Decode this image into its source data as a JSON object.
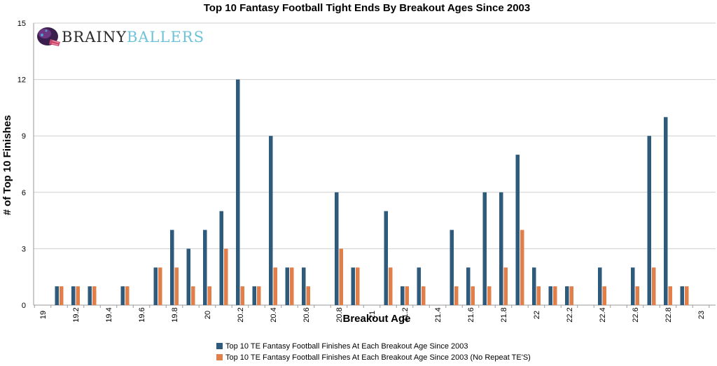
{
  "chart_data": {
    "type": "bar",
    "title": "Top 10 Fantasy Football Tight Ends By Breakout Ages Since 2003",
    "xlabel": "Breakout Age",
    "ylabel": "# of Top 10 Finishes",
    "ylim": [
      0,
      15
    ],
    "yticks": [
      "0",
      "3",
      "6",
      "9",
      "12",
      "15"
    ],
    "grid": true,
    "legend_position": "bottom",
    "categories": [
      "19",
      "19.1",
      "19.2",
      "19.3",
      "19.4",
      "19.5",
      "19.6",
      "19.7",
      "19.8",
      "19.9",
      "20",
      "20.1",
      "20.2",
      "20.3",
      "20.4",
      "20.5",
      "20.6",
      "20.7",
      "20.8",
      "20.9",
      "21",
      "21.1",
      "21.2",
      "21.3",
      "21.4",
      "21.5",
      "21.6",
      "21.7",
      "21.8",
      "21.9",
      "22",
      "22.1",
      "22.2",
      "22.3",
      "22.4",
      "22.5",
      "22.6",
      "22.7",
      "22.8",
      "22.9",
      "23"
    ],
    "tick_labels": [
      "19",
      "",
      "19.2",
      "",
      "19.4",
      "",
      "19.6",
      "",
      "19.8",
      "",
      "20",
      "",
      "20.2",
      "",
      "20.4",
      "",
      "20.6",
      "",
      "20.8",
      "",
      "21",
      "",
      "21.2",
      "",
      "21.4",
      "",
      "21.6",
      "",
      "21.8",
      "",
      "22",
      "",
      "22.2",
      "",
      "22.4",
      "",
      "22.6",
      "",
      "22.8",
      "",
      "23"
    ],
    "series": [
      {
        "name": "Top 10 TE Fantasy Football Finishes At Each Breakout Age Since 2003",
        "color": "#2e5a7c",
        "values": [
          0,
          1,
          1,
          1,
          0,
          1,
          0,
          2,
          4,
          3,
          4,
          5,
          12,
          1,
          9,
          2,
          2,
          0,
          6,
          2,
          0,
          5,
          1,
          2,
          0,
          4,
          2,
          6,
          6,
          8,
          2,
          1,
          1,
          0,
          2,
          0,
          2,
          9,
          10,
          1,
          0
        ]
      },
      {
        "name": "Top 10 TE Fantasy Football Finishes At Each Breakout Age Since 2003 (No Repeat TE'S)",
        "color": "#e07f4a",
        "values": [
          0,
          1,
          1,
          1,
          0,
          1,
          0,
          2,
          2,
          1,
          1,
          3,
          1,
          1,
          2,
          2,
          1,
          0,
          3,
          2,
          0,
          2,
          1,
          1,
          0,
          1,
          1,
          1,
          2,
          4,
          1,
          1,
          1,
          0,
          1,
          0,
          1,
          2,
          1,
          1,
          0
        ]
      }
    ]
  },
  "logo": {
    "name": "BRAINY BALLERS",
    "part1": "BRAINY",
    "part2": "BALLERS",
    "icon": "helmet-icon"
  }
}
